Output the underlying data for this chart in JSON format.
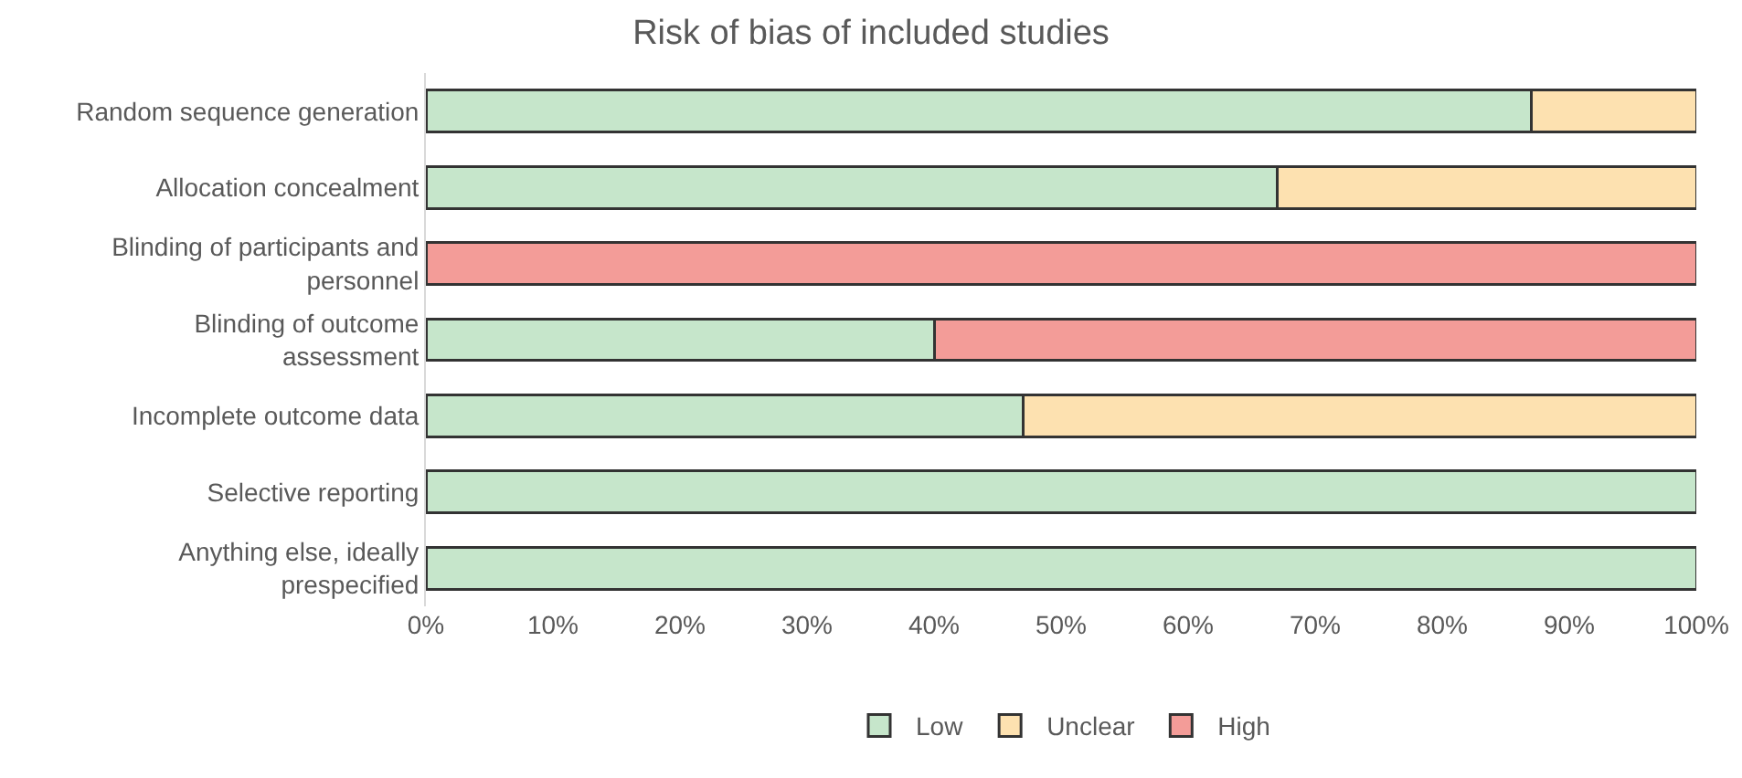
{
  "chart_data": {
    "type": "bar",
    "orientation": "horizontal",
    "stacked": true,
    "title": "Risk of bias of included studies",
    "categories": [
      "Random sequence generation",
      "Allocation concealment",
      "Blinding of participants and personnel",
      "Blinding of outcome assessment",
      "Incomplete outcome data",
      "Selective reporting",
      "Anything else, ideally prespecified"
    ],
    "series": [
      {
        "name": "Low",
        "color": "#c6e6cb",
        "values": [
          87,
          67,
          null,
          40,
          47,
          100,
          100
        ]
      },
      {
        "name": "Unclear",
        "color": "#fde1b0",
        "values": [
          13,
          33,
          null,
          null,
          53,
          null,
          null
        ]
      },
      {
        "name": "High",
        "color": "#f39c98",
        "values": [
          null,
          null,
          100,
          60,
          null,
          null,
          null
        ]
      }
    ],
    "xlim": [
      0,
      100
    ],
    "xticks": [
      {
        "value": 0,
        "label": "0%"
      },
      {
        "value": 10,
        "label": "10%"
      },
      {
        "value": 20,
        "label": "20%"
      },
      {
        "value": 30,
        "label": "30%"
      },
      {
        "value": 40,
        "label": "40%"
      },
      {
        "value": 50,
        "label": "50%"
      },
      {
        "value": 60,
        "label": "60%"
      },
      {
        "value": 70,
        "label": "70%"
      },
      {
        "value": 80,
        "label": "80%"
      },
      {
        "value": 90,
        "label": "90%"
      },
      {
        "value": 100,
        "label": "100%"
      }
    ],
    "grid": false,
    "legend": "bottom"
  }
}
